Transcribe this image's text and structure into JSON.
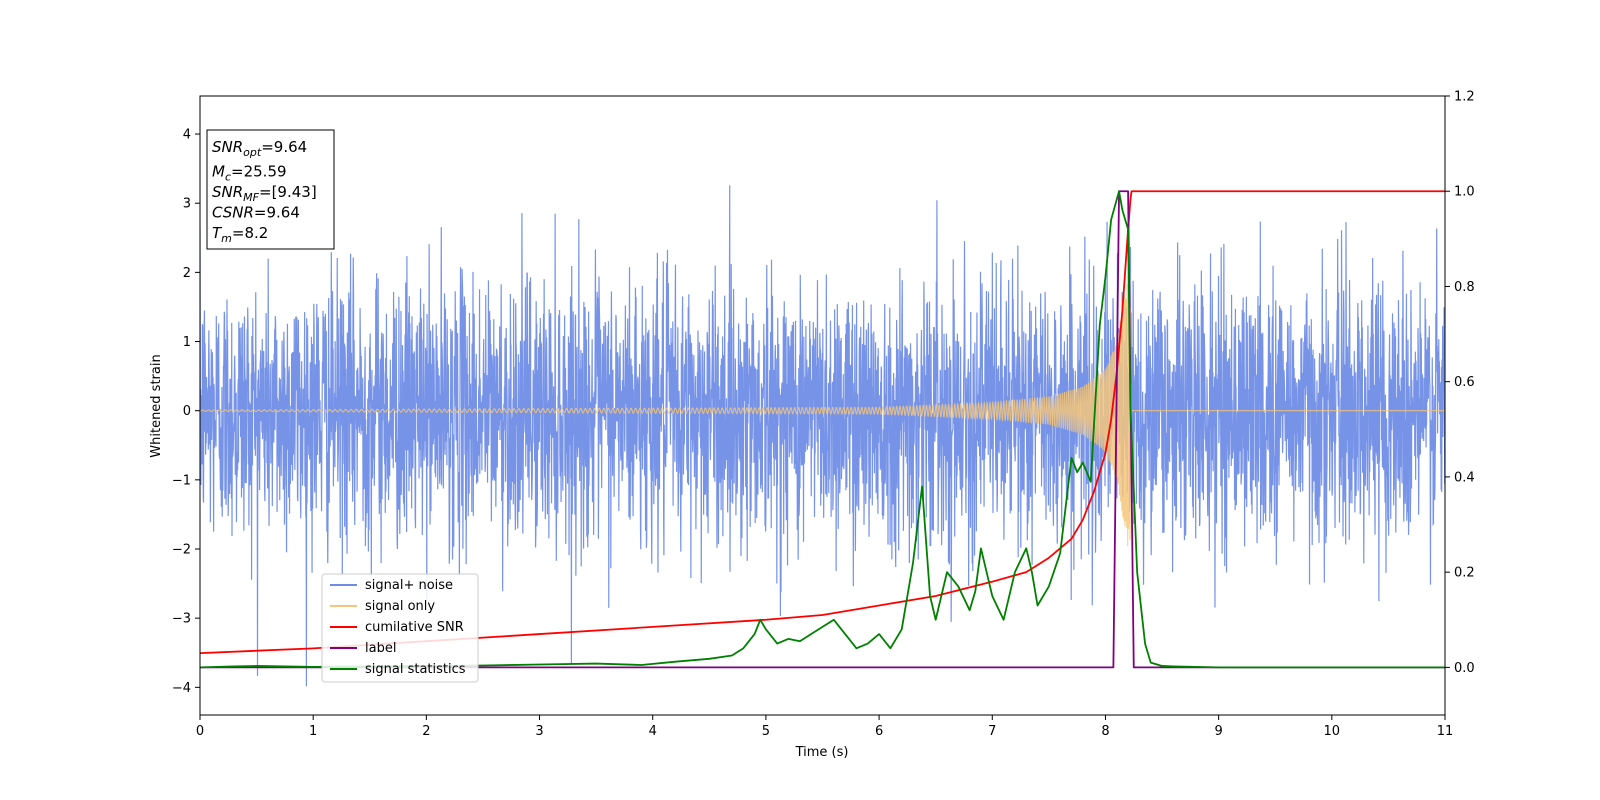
{
  "chart_data": {
    "type": "line",
    "title": "",
    "xlabel": "Time (s)",
    "ylabel": "Whitened strain",
    "xlim": [
      0,
      11
    ],
    "ylim": [
      -4.4,
      4.55
    ],
    "y2lim": [
      -0.1,
      1.2
    ],
    "xticks": [
      "0",
      "1",
      "2",
      "3",
      "4",
      "5",
      "6",
      "7",
      "8",
      "9",
      "10",
      "11"
    ],
    "yticks": [
      "−4",
      "−3",
      "−2",
      "−1",
      "0",
      "1",
      "2",
      "3",
      "4"
    ],
    "y2ticks": [
      "0.0",
      "0.2",
      "0.4",
      "0.6",
      "0.8",
      "1.0",
      "1.2"
    ],
    "grid": false,
    "legend_position": "lower-left",
    "legend": [
      {
        "label": "signal+ noise",
        "color": "#6f8de6"
      },
      {
        "label": "signal only",
        "color": "#f5c57a"
      },
      {
        "label": "cumilative SNR",
        "color": "#ff0000"
      },
      {
        "label": "label",
        "color": "#800080"
      },
      {
        "label": "signal statistics",
        "color": "#008000"
      }
    ],
    "annotation": {
      "lines": [
        {
          "base": "SNR",
          "sub": "opt",
          "value": "=9.64"
        },
        {
          "base": "M",
          "sub": "c",
          "value": "=25.59"
        },
        {
          "base": "SNR",
          "sub": "MF",
          "value": "=[9.43]"
        },
        {
          "base": "CSNR",
          "sub": "",
          "value": "=9.64"
        },
        {
          "base": "T",
          "sub": "m",
          "value": "=8.2"
        }
      ]
    },
    "series": [
      {
        "name": "signal+ noise",
        "axis": "left",
        "kind": "noise",
        "color": "#6f8de6",
        "x_range": [
          0,
          11
        ],
        "amplitude_sd": 0.95,
        "peak_range": [
          -4.0,
          3.9
        ]
      },
      {
        "name": "signal only",
        "axis": "left",
        "kind": "chirp",
        "color": "#f5c57a",
        "x_range": [
          0,
          8.22
        ],
        "merger_time": 8.2,
        "amplitude_envelope": [
          [
            0,
            0.01
          ],
          [
            6,
            0.05
          ],
          [
            7,
            0.12
          ],
          [
            7.5,
            0.2
          ],
          [
            7.8,
            0.35
          ],
          [
            8.0,
            0.6
          ],
          [
            8.1,
            1.0
          ],
          [
            8.2,
            2.0
          ]
        ]
      },
      {
        "name": "cumilative SNR",
        "axis": "right",
        "color": "#ff0000",
        "x": [
          0,
          1,
          2,
          3,
          4,
          5,
          5.5,
          6,
          6.5,
          7,
          7.3,
          7.5,
          7.7,
          7.8,
          7.9,
          8.0,
          8.05,
          8.1,
          8.15,
          8.2,
          8.22,
          8.23,
          11
        ],
        "y": [
          0.03,
          0.04,
          0.055,
          0.07,
          0.085,
          0.1,
          0.11,
          0.13,
          0.15,
          0.18,
          0.2,
          0.23,
          0.27,
          0.31,
          0.37,
          0.45,
          0.52,
          0.62,
          0.75,
          0.92,
          0.98,
          1.0,
          1.0
        ]
      },
      {
        "name": "label",
        "axis": "right",
        "color": "#800080",
        "x": [
          0,
          8.07,
          8.12,
          8.2,
          8.25,
          11
        ],
        "y": [
          0,
          0,
          1.0,
          1.0,
          0,
          0
        ]
      },
      {
        "name": "signal statistics",
        "axis": "right",
        "color": "#008000",
        "x": [
          0,
          0.3,
          0.5,
          1,
          1.5,
          2,
          2.5,
          3,
          3.5,
          3.9,
          4.2,
          4.5,
          4.7,
          4.8,
          4.9,
          4.95,
          5.0,
          5.1,
          5.2,
          5.3,
          5.4,
          5.5,
          5.6,
          5.7,
          5.8,
          5.9,
          6.0,
          6.1,
          6.2,
          6.3,
          6.38,
          6.45,
          6.5,
          6.6,
          6.7,
          6.8,
          6.85,
          6.9,
          7.0,
          7.1,
          7.2,
          7.3,
          7.35,
          7.4,
          7.5,
          7.6,
          7.7,
          7.75,
          7.8,
          7.87,
          7.95,
          8.0,
          8.05,
          8.12,
          8.15,
          8.2,
          8.22,
          8.28,
          8.35,
          8.4,
          8.5,
          8.6,
          8.8,
          9,
          10,
          11
        ],
        "y": [
          0.0,
          0.002,
          0.003,
          0.001,
          0.002,
          0.003,
          0.004,
          0.006,
          0.008,
          0.005,
          0.012,
          0.018,
          0.025,
          0.04,
          0.07,
          0.1,
          0.08,
          0.05,
          0.06,
          0.055,
          0.07,
          0.085,
          0.1,
          0.07,
          0.04,
          0.05,
          0.07,
          0.04,
          0.08,
          0.22,
          0.38,
          0.15,
          0.1,
          0.2,
          0.17,
          0.12,
          0.16,
          0.25,
          0.15,
          0.1,
          0.2,
          0.25,
          0.2,
          0.13,
          0.17,
          0.24,
          0.44,
          0.41,
          0.43,
          0.39,
          0.72,
          0.82,
          0.94,
          1.0,
          0.96,
          0.92,
          0.55,
          0.2,
          0.05,
          0.01,
          0.003,
          0.002,
          0.001,
          0.0,
          0.0,
          0.0
        ]
      }
    ]
  }
}
